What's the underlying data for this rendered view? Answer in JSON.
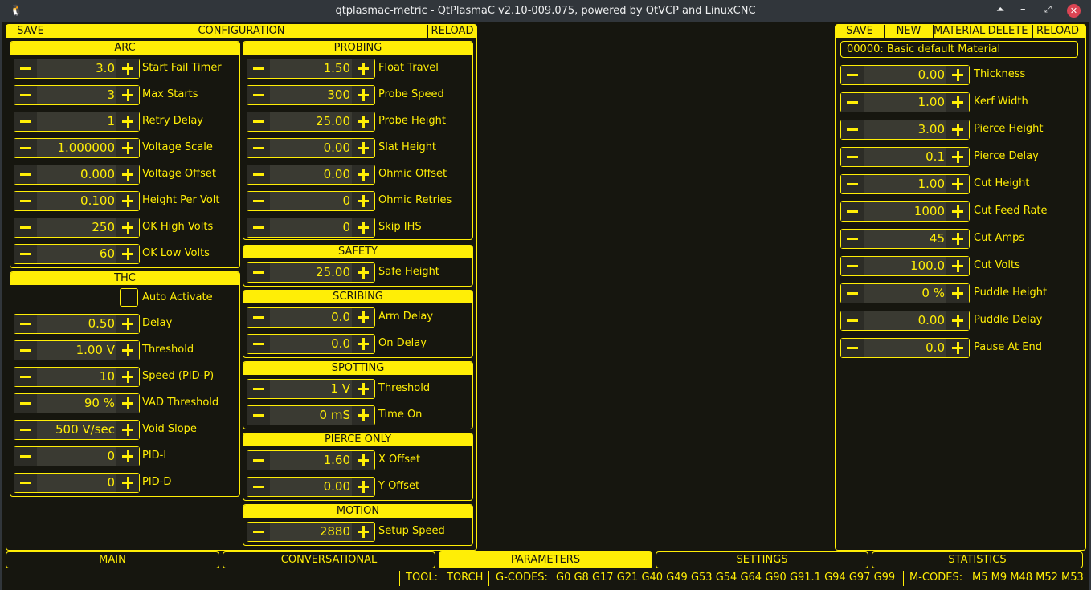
{
  "window": {
    "title": "qtplasmac-metric - QtPlasmaC v2.10-009.075, powered by QtVCP and LinuxCNC"
  },
  "config": {
    "save": "SAVE",
    "title": "CONFIGURATION",
    "reload": "RELOAD"
  },
  "groups": {
    "arc": {
      "title": "ARC",
      "rows": [
        {
          "value": "3.0",
          "label": "Start Fail Timer"
        },
        {
          "value": "3",
          "label": "Max Starts"
        },
        {
          "value": "1",
          "label": "Retry Delay"
        },
        {
          "value": "1.000000",
          "label": "Voltage Scale"
        },
        {
          "value": "0.000",
          "label": "Voltage Offset"
        },
        {
          "value": "0.100",
          "label": "Height Per Volt"
        },
        {
          "value": "250",
          "label": "OK High Volts"
        },
        {
          "value": "60",
          "label": "OK Low Volts"
        }
      ]
    },
    "thc": {
      "title": "THC",
      "auto_activate": "Auto Activate",
      "auto_activate_checked": false,
      "rows": [
        {
          "value": "0.50",
          "label": "Delay"
        },
        {
          "value": "1.00 V",
          "label": "Threshold"
        },
        {
          "value": "10",
          "label": "Speed (PID-P)"
        },
        {
          "value": "90 %",
          "label": "VAD Threshold"
        },
        {
          "value": "500 V/sec",
          "label": "Void Slope"
        },
        {
          "value": "0",
          "label": "PID-I"
        },
        {
          "value": "0",
          "label": "PID-D"
        }
      ]
    },
    "probing": {
      "title": "PROBING",
      "rows": [
        {
          "value": "1.50",
          "label": "Float Travel"
        },
        {
          "value": "300",
          "label": "Probe Speed"
        },
        {
          "value": "25.00",
          "label": "Probe Height"
        },
        {
          "value": "0.00",
          "label": "Slat Height"
        },
        {
          "value": "0.00",
          "label": "Ohmic Offset"
        },
        {
          "value": "0",
          "label": "Ohmic Retries"
        },
        {
          "value": "0",
          "label": "Skip IHS"
        }
      ]
    },
    "safety": {
      "title": "SAFETY",
      "rows": [
        {
          "value": "25.00",
          "label": "Safe Height"
        }
      ]
    },
    "scribing": {
      "title": "SCRIBING",
      "rows": [
        {
          "value": "0.0",
          "label": "Arm Delay"
        },
        {
          "value": "0.0",
          "label": "On Delay"
        }
      ]
    },
    "spotting": {
      "title": "SPOTTING",
      "rows": [
        {
          "value": "1 V",
          "label": "Threshold"
        },
        {
          "value": "0 mS",
          "label": "Time On"
        }
      ]
    },
    "pierce_only": {
      "title": "PIERCE ONLY",
      "rows": [
        {
          "value": "1.60",
          "label": "X Offset"
        },
        {
          "value": "0.00",
          "label": "Y Offset"
        }
      ]
    },
    "motion": {
      "title": "MOTION",
      "rows": [
        {
          "value": "2880",
          "label": "Setup Speed"
        }
      ]
    }
  },
  "material": {
    "buttons": [
      "SAVE",
      "NEW",
      "MATERIAL",
      "DELETE",
      "RELOAD"
    ],
    "selected": "00000: Basic default Material",
    "rows": [
      {
        "value": "0.00",
        "label": "Thickness"
      },
      {
        "value": "1.00",
        "label": "Kerf Width"
      },
      {
        "value": "3.00",
        "label": "Pierce Height"
      },
      {
        "value": "0.1",
        "label": "Pierce Delay"
      },
      {
        "value": "1.00",
        "label": "Cut Height"
      },
      {
        "value": "1000",
        "label": "Cut Feed Rate"
      },
      {
        "value": "45",
        "label": "Cut Amps"
      },
      {
        "value": "100.0",
        "label": "Cut Volts"
      },
      {
        "value": "0 %",
        "label": "Puddle Height"
      },
      {
        "value": "0.00",
        "label": "Puddle Delay"
      },
      {
        "value": "0.0",
        "label": "Pause At End"
      }
    ]
  },
  "tabs": [
    {
      "label": "MAIN"
    },
    {
      "label": "CONVERSATIONAL"
    },
    {
      "label": "PARAMETERS",
      "active": true
    },
    {
      "label": "SETTINGS"
    },
    {
      "label": "STATISTICS"
    }
  ],
  "status": {
    "tool_label": "TOOL:",
    "tool": "TORCH",
    "gcodes_label": "G-CODES:",
    "gcodes": "G0 G8 G17 G21 G40 G49 G53 G54 G64 G90 G91.1 G94 G97 G99",
    "mcodes_label": "M-CODES:",
    "mcodes": "M5 M9 M48 M52 M53"
  },
  "colors": {
    "accent": "#ffee06",
    "background": "#16160f"
  }
}
